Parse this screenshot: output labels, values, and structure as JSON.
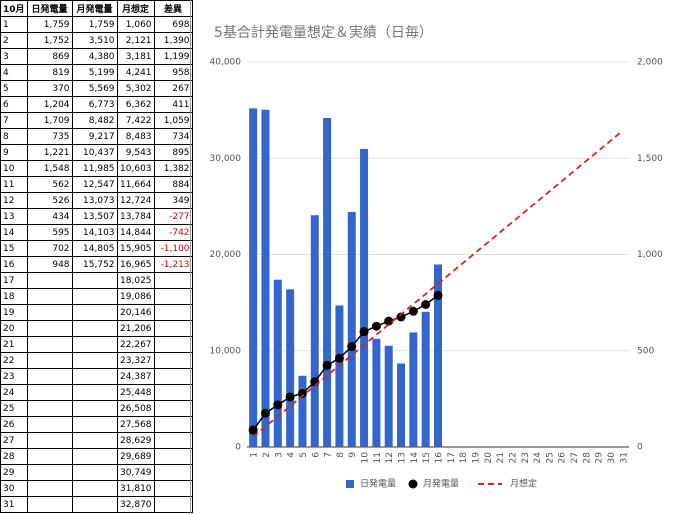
{
  "table": {
    "header": [
      "10月",
      "日発電量",
      "月発電量",
      "月想定",
      "差異"
    ],
    "rows": [
      [
        "1",
        "1,759",
        "1,759",
        "1,060",
        "698"
      ],
      [
        "2",
        "1,752",
        "3,510",
        "2,121",
        "1,390"
      ],
      [
        "3",
        "869",
        "4,380",
        "3,181",
        "1,199"
      ],
      [
        "4",
        "819",
        "5,199",
        "4,241",
        "958"
      ],
      [
        "5",
        "370",
        "5,569",
        "5,302",
        "267"
      ],
      [
        "6",
        "1,204",
        "6,773",
        "6,362",
        "411"
      ],
      [
        "7",
        "1,709",
        "8,482",
        "7,422",
        "1,059"
      ],
      [
        "8",
        "735",
        "9,217",
        "8,483",
        "734"
      ],
      [
        "9",
        "1,221",
        "10,437",
        "9,543",
        "895"
      ],
      [
        "10",
        "1,548",
        "11,985",
        "10,603",
        "1,382"
      ],
      [
        "11",
        "562",
        "12,547",
        "11,664",
        "884"
      ],
      [
        "12",
        "526",
        "13,073",
        "12,724",
        "349"
      ],
      [
        "13",
        "434",
        "13,507",
        "13,784",
        "-277"
      ],
      [
        "14",
        "595",
        "14,103",
        "14,844",
        "-742"
      ],
      [
        "15",
        "702",
        "14,805",
        "15,905",
        "-1,100"
      ],
      [
        "16",
        "948",
        "15,752",
        "16,965",
        "-1,213"
      ],
      [
        "17",
        null,
        null,
        "18,025",
        null
      ],
      [
        "18",
        null,
        null,
        "19,086",
        null
      ],
      [
        "19",
        null,
        null,
        "20,146",
        null
      ],
      [
        "20",
        null,
        null,
        "21,206",
        null
      ],
      [
        "21",
        null,
        null,
        "22,267",
        null
      ],
      [
        "22",
        null,
        null,
        "23,327",
        null
      ],
      [
        "23",
        null,
        null,
        "24,387",
        null
      ],
      [
        "24",
        null,
        null,
        "25,448",
        null
      ],
      [
        "25",
        null,
        null,
        "26,508",
        null
      ],
      [
        "26",
        null,
        null,
        "27,568",
        null
      ],
      [
        "27",
        null,
        null,
        "28,629",
        null
      ],
      [
        "28",
        null,
        null,
        "29,689",
        null
      ],
      [
        "29",
        null,
        null,
        "30,749",
        null
      ],
      [
        "30",
        null,
        null,
        "31,810",
        null
      ],
      [
        "31",
        null,
        null,
        "32,870",
        null
      ]
    ]
  },
  "chart_data": {
    "type": "bar",
    "title": "5基合計発電量想定＆実績（日毎）",
    "categories": [
      "1",
      "2",
      "3",
      "4",
      "5",
      "6",
      "7",
      "8",
      "9",
      "10",
      "11",
      "12",
      "13",
      "14",
      "15",
      "16",
      "17",
      "18",
      "19",
      "20",
      "21",
      "22",
      "23",
      "24",
      "25",
      "26",
      "27",
      "28",
      "29",
      "30",
      "31"
    ],
    "series": [
      {
        "name": "日発電量",
        "type": "bar",
        "axis": "y2",
        "color": "#3366cc",
        "values": [
          1759,
          1752,
          869,
          819,
          370,
          1204,
          1709,
          735,
          1221,
          1548,
          562,
          526,
          434,
          595,
          702,
          948,
          null,
          null,
          null,
          null,
          null,
          null,
          null,
          null,
          null,
          null,
          null,
          null,
          null,
          null,
          null
        ]
      },
      {
        "name": "月発電量",
        "type": "line",
        "color": "#000000",
        "markers": true,
        "values": [
          1759,
          3510,
          4380,
          5199,
          5569,
          6773,
          8482,
          9217,
          10437,
          11985,
          12547,
          13073,
          13507,
          14103,
          14805,
          15752,
          null,
          null,
          null,
          null,
          null,
          null,
          null,
          null,
          null,
          null,
          null,
          null,
          null,
          null,
          null
        ]
      },
      {
        "name": "月想定",
        "type": "line",
        "color": "#e02020",
        "dashed": true,
        "values": [
          1060,
          2121,
          3181,
          4241,
          5302,
          6362,
          7422,
          8483,
          9543,
          10603,
          11664,
          12724,
          13784,
          14844,
          15905,
          16965,
          18025,
          19086,
          20146,
          21206,
          22267,
          23327,
          24387,
          25448,
          26508,
          27568,
          28629,
          29689,
          30749,
          31810,
          32870
        ]
      }
    ],
    "ylim": [
      0,
      40000
    ],
    "yticks": [
      0,
      {
        "value": 10000,
        "label": "10,000"
      },
      {
        "value": 20000,
        "label": "20,000"
      },
      {
        "value": 30000,
        "label": "30,000"
      },
      {
        "value": 40000,
        "label": "40,000"
      }
    ],
    "y2lim": [
      0,
      2000
    ],
    "y2ticks": [
      0,
      500,
      {
        "value": 1000,
        "label": "1,000"
      },
      {
        "value": 1500,
        "label": "1,500"
      },
      {
        "value": 2000,
        "label": "2,000"
      }
    ],
    "grid": true,
    "legend": "bottom"
  }
}
